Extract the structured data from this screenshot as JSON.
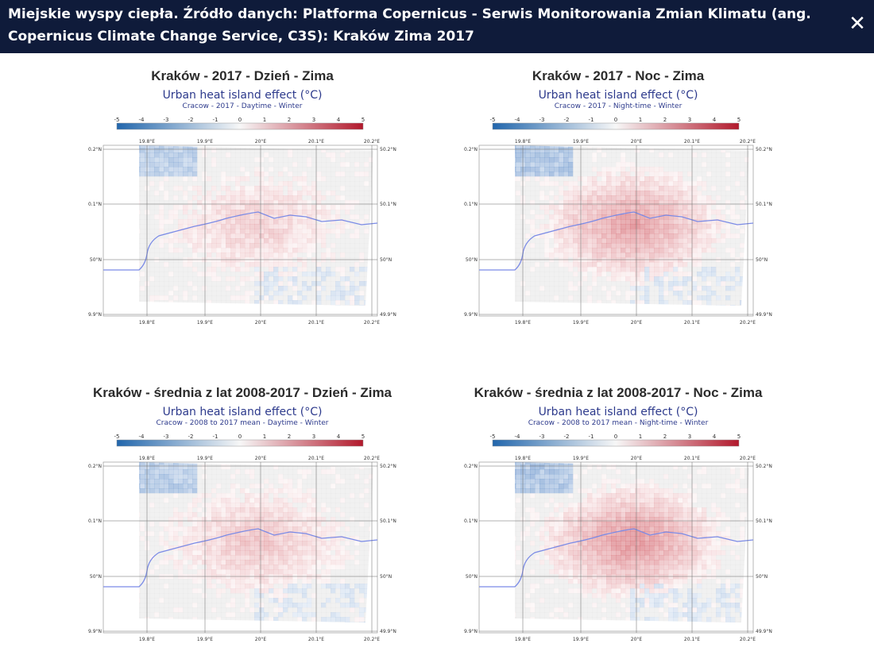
{
  "header": {
    "title": "Miejskie wyspy ciepła. Źródło danych: Platforma Copernicus - Serwis Monitorowania Zmian Klimatu (ang. Copernicus Climate Change Service, C3S): Kraków Zima 2017",
    "close_icon": "close-icon"
  },
  "colorbar": {
    "ticks": [
      "-5",
      "-4",
      "-3",
      "-2",
      "-1",
      "0",
      "1",
      "2",
      "3",
      "4",
      "5"
    ],
    "low_color": "#2166ac",
    "mid_color": "#f7f7f7",
    "high_color": "#b2182b"
  },
  "axes": {
    "lon_ticks": [
      "19.8°E",
      "19.9°E",
      "20°E",
      "20.1°E",
      "20.2°E"
    ],
    "lat_left": [
      "0.2°N",
      "0.1°N",
      "50°N",
      "9.9°N"
    ],
    "lat_right": [
      "50.2°N",
      "50.1°N",
      "50°N",
      "49.9°N"
    ]
  },
  "panels": [
    {
      "heading": "Kraków - 2017 - Dzień - Zima",
      "title": "Urban heat island effect (°C)",
      "subtitle": "Cracow - 2017 - Daytime - Winter",
      "intensity": 0.45
    },
    {
      "heading": "Kraków - 2017 - Noc - Zima",
      "title": "Urban heat island effect (°C)",
      "subtitle": "Cracow - 2017 - Night-time - Winter",
      "intensity": 0.9
    },
    {
      "heading": "Kraków - średnia z lat 2008-2017 - Dzień - Zima",
      "title": "Urban heat island effect (°C)",
      "subtitle": "Cracow - 2008 to 2017 mean - Daytime - Winter",
      "intensity": 0.55
    },
    {
      "heading": "Kraków - średnia z lat 2008-2017 - Noc - Zima",
      "title": "Urban heat island effect (°C)",
      "subtitle": "Cracow - 2008 to 2017 mean - Night-time - Winter",
      "intensity": 1.0
    }
  ]
}
